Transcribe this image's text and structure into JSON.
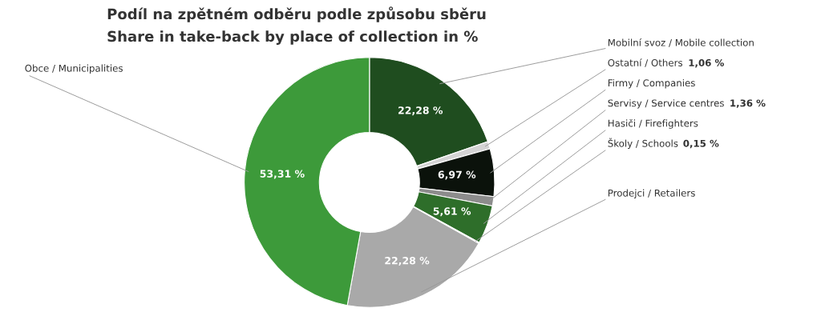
{
  "chart_data": {
    "type": "donut",
    "title": "Podíl na zpětném odběru podle způsobu sběru",
    "subtitle": "Share in take-back by place of collection in %",
    "categories": [
      "Mobilní svoz / Mobile collection",
      "Ostatní / Others",
      "Firmy / Companies",
      "Servisy / Service centres",
      "Hasiči / Firefighters",
      "Školy / Schools",
      "Prodejci / Retailers",
      "Obce / Municipalities"
    ],
    "values": [
      22.28,
      1.06,
      6.97,
      1.36,
      5.61,
      0.15,
      22.28,
      53.31
    ],
    "value_labels": [
      "22,28 %",
      "1,06 %",
      "6,97 %",
      "1,36 %",
      "5,61 %",
      "0,15 %",
      "22,28 %",
      "53,31 %"
    ],
    "colors": [
      "#1f4d1f",
      "#d4d4d4",
      "#0b120b",
      "#8c8c8c",
      "#2e6e2a",
      "#c9c9c9",
      "#a9a9a9",
      "#3d9a3a"
    ]
  }
}
